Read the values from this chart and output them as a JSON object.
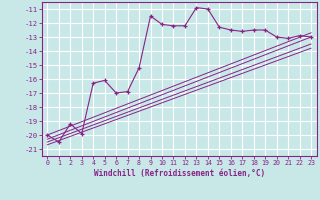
{
  "xlabel": "Windchill (Refroidissement éolien,°C)",
  "bg_color": "#c8e8e8",
  "grid_color": "#ffffff",
  "line_color": "#882288",
  "xlim": [
    -0.5,
    23.5
  ],
  "ylim": [
    -21.5,
    -10.5
  ],
  "xticks": [
    0,
    1,
    2,
    3,
    4,
    5,
    6,
    7,
    8,
    9,
    10,
    11,
    12,
    13,
    14,
    15,
    16,
    17,
    18,
    19,
    20,
    21,
    22,
    23
  ],
  "yticks": [
    -11,
    -12,
    -13,
    -14,
    -15,
    -16,
    -17,
    -18,
    -19,
    -20,
    -21
  ],
  "curve1_x": [
    0,
    1,
    2,
    3,
    4,
    5,
    6,
    7,
    8,
    9,
    10,
    11,
    12,
    13,
    14,
    15,
    16,
    17,
    18,
    19,
    20,
    21,
    22,
    23
  ],
  "curve1_y": [
    -20.0,
    -20.5,
    -19.2,
    -19.9,
    -16.3,
    -16.1,
    -17.0,
    -16.9,
    -15.2,
    -11.5,
    -12.1,
    -12.2,
    -12.2,
    -10.9,
    -11.0,
    -12.3,
    -12.5,
    -12.6,
    -12.5,
    -12.5,
    -13.0,
    -13.1,
    -12.9,
    -13.0
  ],
  "line2_x": [
    0,
    23
  ],
  "line2_y": [
    -20.0,
    -12.7
  ],
  "line3_x": [
    0,
    23
  ],
  "line3_y": [
    -20.3,
    -13.0
  ],
  "line4_x": [
    0,
    23
  ],
  "line4_y": [
    -20.5,
    -13.5
  ],
  "line5_x": [
    0,
    23
  ],
  "line5_y": [
    -20.7,
    -13.8
  ]
}
